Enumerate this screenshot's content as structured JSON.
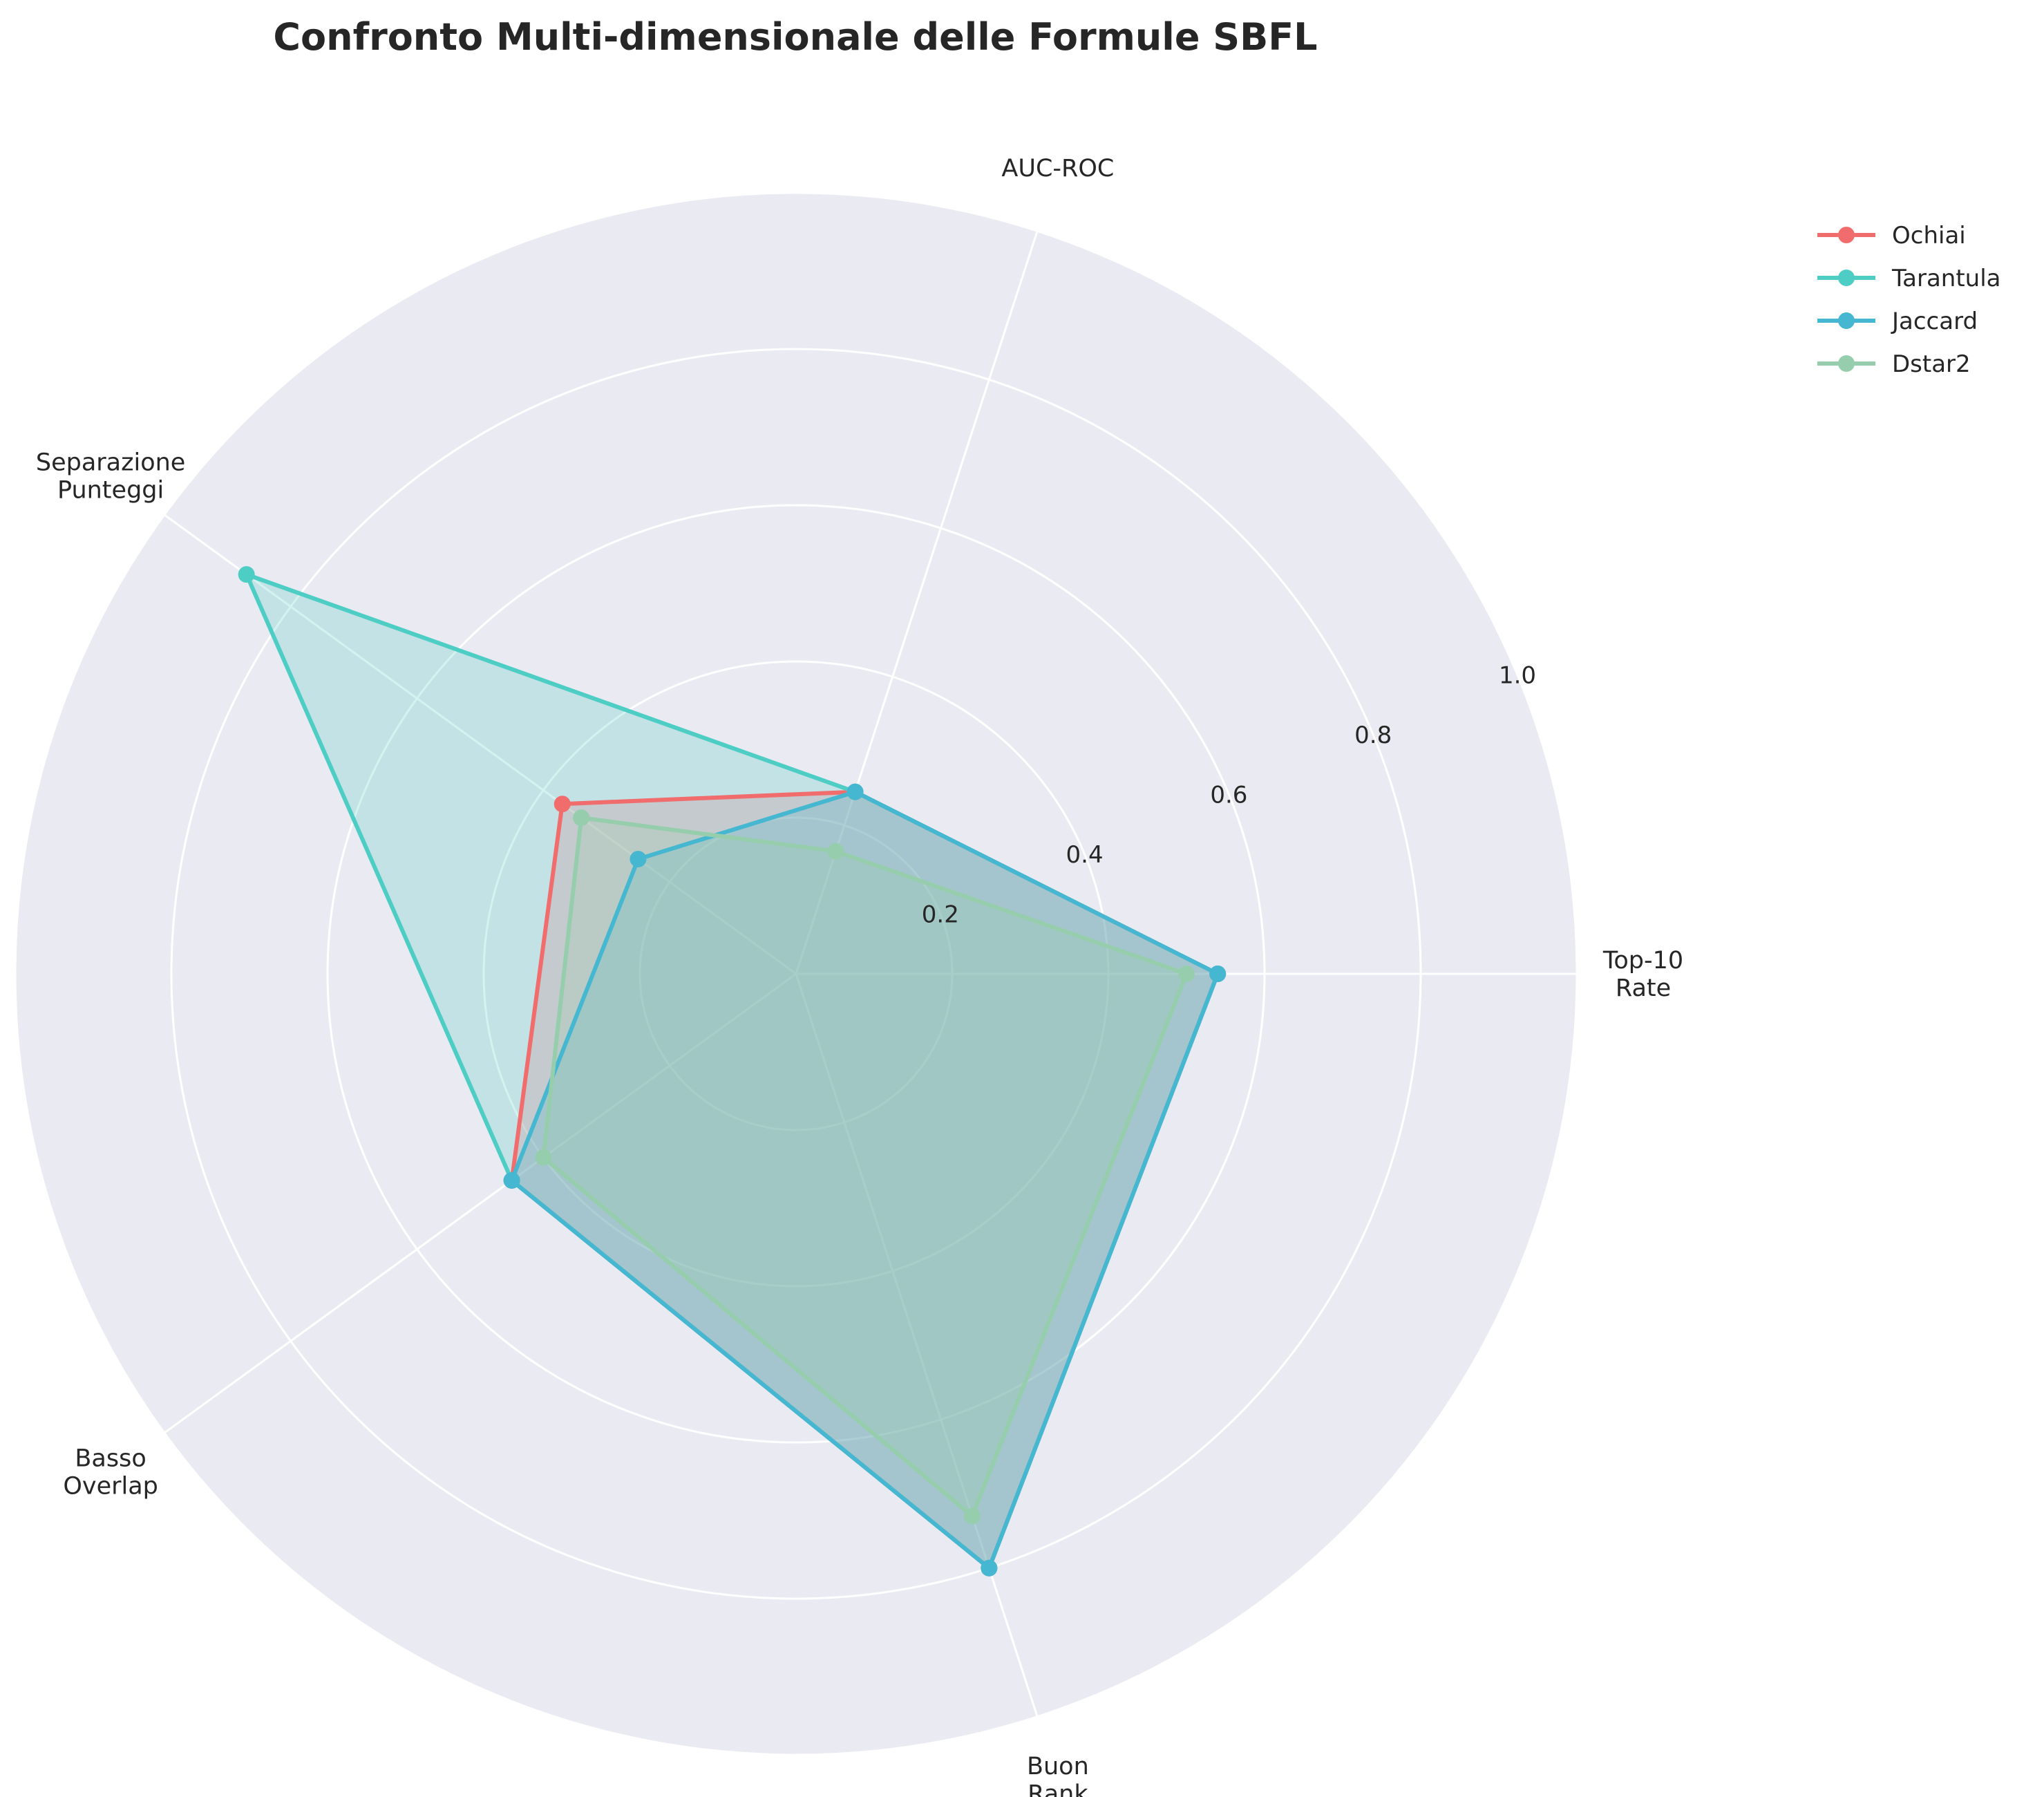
{
  "chart_data": {
    "type": "radar",
    "title": "Confronto Multi-dimensionale delle Formule SBFL",
    "axes": [
      [
        "Top-10",
        "Rate"
      ],
      [
        "AUC-ROC"
      ],
      [
        "Separazione",
        "Punteggi"
      ],
      [
        "Basso",
        "Overlap"
      ],
      [
        "Buon",
        "Rank"
      ]
    ],
    "rlim": [
      0,
      1.0
    ],
    "rticks": [
      0.2,
      0.4,
      0.6,
      0.8,
      1.0
    ],
    "rtick_labels": [
      "0.2",
      "0.4",
      "0.6",
      "0.8",
      "1.0"
    ],
    "grid": true,
    "legend_position": "top-right",
    "series": [
      {
        "name": "Ochiai",
        "color": "#f16c6c",
        "values": [
          0.54,
          0.245,
          0.37,
          0.45,
          0.8
        ]
      },
      {
        "name": "Tarantula",
        "color": "#4ecdc4",
        "values": [
          0.54,
          0.245,
          0.87,
          0.45,
          0.8
        ]
      },
      {
        "name": "Jaccard",
        "color": "#45b7d1",
        "values": [
          0.54,
          0.245,
          0.25,
          0.45,
          0.8
        ]
      },
      {
        "name": "Dstar2",
        "color": "#96cead",
        "values": [
          0.5,
          0.165,
          0.34,
          0.4,
          0.73
        ]
      }
    ]
  }
}
